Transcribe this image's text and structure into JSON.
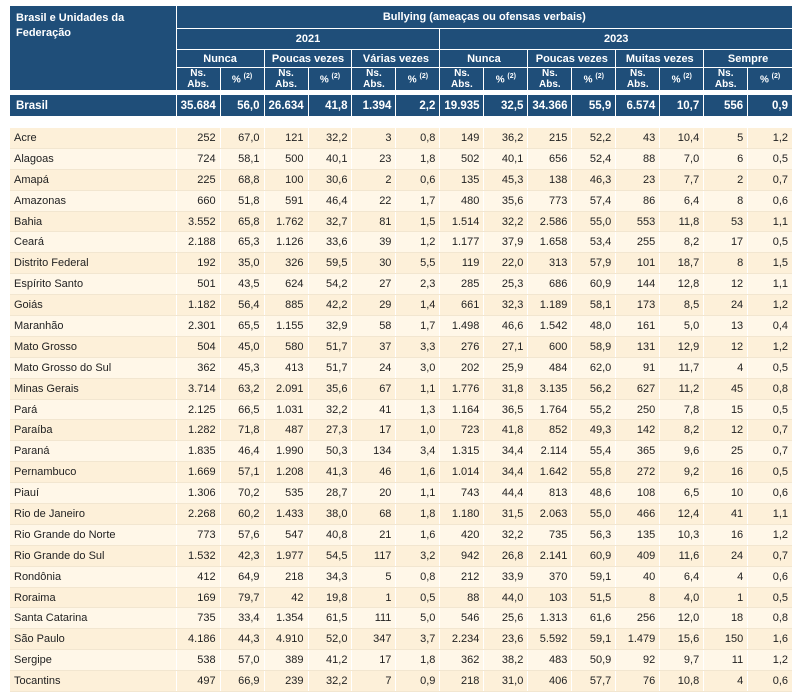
{
  "header": {
    "region_label": "Brasil e Unidades da Federação",
    "topic": "Bullying (ameaças ou ofensas verbais)",
    "years": [
      "2021",
      "2023"
    ],
    "groups_2021": [
      "Nunca",
      "Poucas vezes",
      "Várias vezes"
    ],
    "groups_2023": [
      "Nunca",
      "Poucas vezes",
      "Muitas vezes",
      "Sempre"
    ],
    "abs_label": "Ns. Abs.",
    "pct_label": "%",
    "note_mark": "(2)"
  },
  "total": {
    "name": "Brasil",
    "values": [
      "35.684",
      "56,0",
      "26.634",
      "41,8",
      "1.394",
      "2,2",
      "19.935",
      "32,5",
      "34.366",
      "55,9",
      "6.574",
      "10,7",
      "556",
      "0,9"
    ]
  },
  "rows": [
    {
      "name": "Acre",
      "values": [
        "252",
        "67,0",
        "121",
        "32,2",
        "3",
        "0,8",
        "149",
        "36,2",
        "215",
        "52,2",
        "43",
        "10,4",
        "5",
        "1,2"
      ]
    },
    {
      "name": "Alagoas",
      "values": [
        "724",
        "58,1",
        "500",
        "40,1",
        "23",
        "1,8",
        "502",
        "40,1",
        "656",
        "52,4",
        "88",
        "7,0",
        "6",
        "0,5"
      ]
    },
    {
      "name": "Amapá",
      "values": [
        "225",
        "68,8",
        "100",
        "30,6",
        "2",
        "0,6",
        "135",
        "45,3",
        "138",
        "46,3",
        "23",
        "7,7",
        "2",
        "0,7"
      ]
    },
    {
      "name": "Amazonas",
      "values": [
        "660",
        "51,8",
        "591",
        "46,4",
        "22",
        "1,7",
        "480",
        "35,6",
        "773",
        "57,4",
        "86",
        "6,4",
        "8",
        "0,6"
      ]
    },
    {
      "name": "Bahia",
      "values": [
        "3.552",
        "65,8",
        "1.762",
        "32,7",
        "81",
        "1,5",
        "1.514",
        "32,2",
        "2.586",
        "55,0",
        "553",
        "11,8",
        "53",
        "1,1"
      ]
    },
    {
      "name": "Ceará",
      "values": [
        "2.188",
        "65,3",
        "1.126",
        "33,6",
        "39",
        "1,2",
        "1.177",
        "37,9",
        "1.658",
        "53,4",
        "255",
        "8,2",
        "17",
        "0,5"
      ]
    },
    {
      "name": "Distrito Federal",
      "values": [
        "192",
        "35,0",
        "326",
        "59,5",
        "30",
        "5,5",
        "119",
        "22,0",
        "313",
        "57,9",
        "101",
        "18,7",
        "8",
        "1,5"
      ]
    },
    {
      "name": "Espírito Santo",
      "values": [
        "501",
        "43,5",
        "624",
        "54,2",
        "27",
        "2,3",
        "285",
        "25,3",
        "686",
        "60,9",
        "144",
        "12,8",
        "12",
        "1,1"
      ]
    },
    {
      "name": "Goiás",
      "values": [
        "1.182",
        "56,4",
        "885",
        "42,2",
        "29",
        "1,4",
        "661",
        "32,3",
        "1.189",
        "58,1",
        "173",
        "8,5",
        "24",
        "1,2"
      ]
    },
    {
      "name": "Maranhão",
      "values": [
        "2.301",
        "65,5",
        "1.155",
        "32,9",
        "58",
        "1,7",
        "1.498",
        "46,6",
        "1.542",
        "48,0",
        "161",
        "5,0",
        "13",
        "0,4"
      ]
    },
    {
      "name": "Mato Grosso",
      "values": [
        "504",
        "45,0",
        "580",
        "51,7",
        "37",
        "3,3",
        "276",
        "27,1",
        "600",
        "58,9",
        "131",
        "12,9",
        "12",
        "1,2"
      ]
    },
    {
      "name": "Mato Grosso do Sul",
      "values": [
        "362",
        "45,3",
        "413",
        "51,7",
        "24",
        "3,0",
        "202",
        "25,9",
        "484",
        "62,0",
        "91",
        "11,7",
        "4",
        "0,5"
      ]
    },
    {
      "name": "Minas Gerais",
      "values": [
        "3.714",
        "63,2",
        "2.091",
        "35,6",
        "67",
        "1,1",
        "1.776",
        "31,8",
        "3.135",
        "56,2",
        "627",
        "11,2",
        "45",
        "0,8"
      ]
    },
    {
      "name": "Pará",
      "values": [
        "2.125",
        "66,5",
        "1.031",
        "32,2",
        "41",
        "1,3",
        "1.164",
        "36,5",
        "1.764",
        "55,2",
        "250",
        "7,8",
        "15",
        "0,5"
      ]
    },
    {
      "name": "Paraíba",
      "values": [
        "1.282",
        "71,8",
        "487",
        "27,3",
        "17",
        "1,0",
        "723",
        "41,8",
        "852",
        "49,3",
        "142",
        "8,2",
        "12",
        "0,7"
      ]
    },
    {
      "name": "Paraná",
      "values": [
        "1.835",
        "46,4",
        "1.990",
        "50,3",
        "134",
        "3,4",
        "1.315",
        "34,4",
        "2.114",
        "55,4",
        "365",
        "9,6",
        "25",
        "0,7"
      ]
    },
    {
      "name": "Pernambuco",
      "values": [
        "1.669",
        "57,1",
        "1.208",
        "41,3",
        "46",
        "1,6",
        "1.014",
        "34,4",
        "1.642",
        "55,8",
        "272",
        "9,2",
        "16",
        "0,5"
      ]
    },
    {
      "name": "Piauí",
      "values": [
        "1.306",
        "70,2",
        "535",
        "28,7",
        "20",
        "1,1",
        "743",
        "44,4",
        "813",
        "48,6",
        "108",
        "6,5",
        "10",
        "0,6"
      ]
    },
    {
      "name": "Rio de Janeiro",
      "values": [
        "2.268",
        "60,2",
        "1.433",
        "38,0",
        "68",
        "1,8",
        "1.180",
        "31,5",
        "2.063",
        "55,0",
        "466",
        "12,4",
        "41",
        "1,1"
      ]
    },
    {
      "name": "Rio Grande do Norte",
      "values": [
        "773",
        "57,6",
        "547",
        "40,8",
        "21",
        "1,6",
        "420",
        "32,2",
        "735",
        "56,3",
        "135",
        "10,3",
        "16",
        "1,2"
      ]
    },
    {
      "name": "Rio Grande do Sul",
      "values": [
        "1.532",
        "42,3",
        "1.977",
        "54,5",
        "117",
        "3,2",
        "942",
        "26,8",
        "2.141",
        "60,9",
        "409",
        "11,6",
        "24",
        "0,7"
      ]
    },
    {
      "name": "Rondônia",
      "values": [
        "412",
        "64,9",
        "218",
        "34,3",
        "5",
        "0,8",
        "212",
        "33,9",
        "370",
        "59,1",
        "40",
        "6,4",
        "4",
        "0,6"
      ]
    },
    {
      "name": "Roraima",
      "values": [
        "169",
        "79,7",
        "42",
        "19,8",
        "1",
        "0,5",
        "88",
        "44,0",
        "103",
        "51,5",
        "8",
        "4,0",
        "1",
        "0,5"
      ]
    },
    {
      "name": "Santa Catarina",
      "values": [
        "735",
        "33,4",
        "1.354",
        "61,5",
        "111",
        "5,0",
        "546",
        "25,6",
        "1.313",
        "61,6",
        "256",
        "12,0",
        "18",
        "0,8"
      ]
    },
    {
      "name": "São Paulo",
      "values": [
        "4.186",
        "44,3",
        "4.910",
        "52,0",
        "347",
        "3,7",
        "2.234",
        "23,6",
        "5.592",
        "59,1",
        "1.479",
        "15,6",
        "150",
        "1,6"
      ]
    },
    {
      "name": "Sergipe",
      "values": [
        "538",
        "57,0",
        "389",
        "41,2",
        "17",
        "1,8",
        "362",
        "38,2",
        "483",
        "50,9",
        "92",
        "9,7",
        "11",
        "1,2"
      ]
    },
    {
      "name": "Tocantins",
      "values": [
        "497",
        "66,9",
        "239",
        "32,2",
        "7",
        "0,9",
        "218",
        "31,0",
        "406",
        "57,7",
        "76",
        "10,8",
        "4",
        "0,6"
      ]
    }
  ]
}
